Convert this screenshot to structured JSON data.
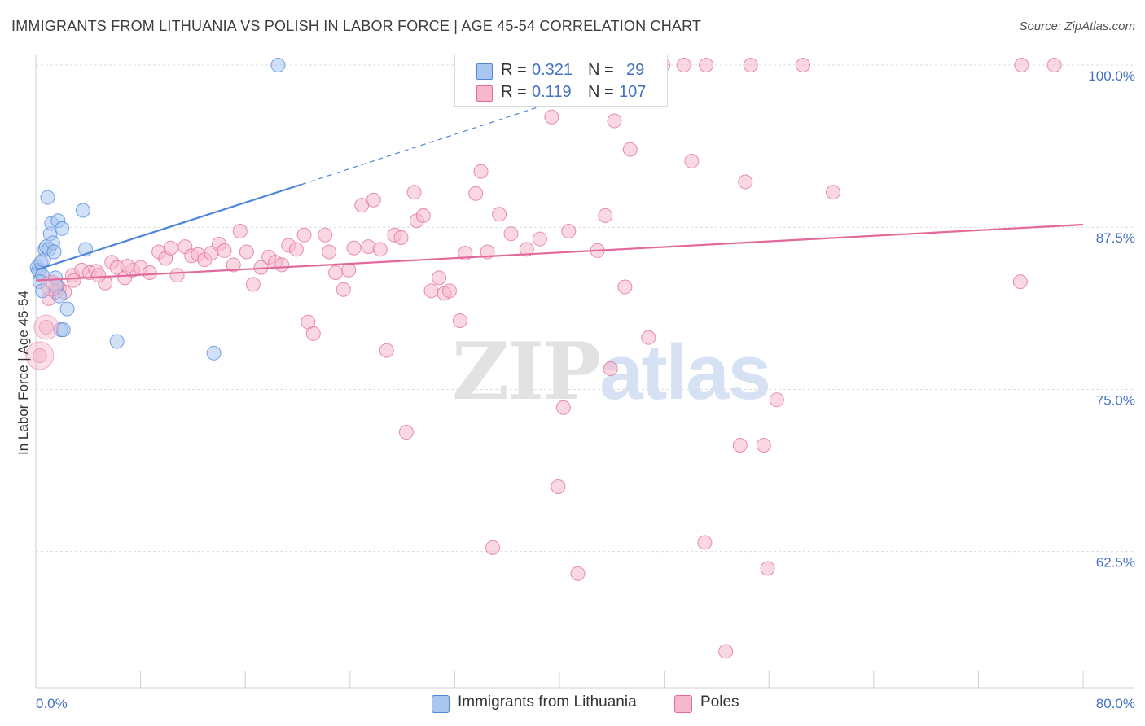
{
  "header": {
    "title": "IMMIGRANTS FROM LITHUANIA VS POLISH IN LABOR FORCE | AGE 45-54 CORRELATION CHART",
    "source": "Source: ZipAtlas.com"
  },
  "watermark": {
    "zip": "ZIP",
    "atlas": "atlas"
  },
  "legend": {
    "rows": [
      {
        "r_label": "R = ",
        "r_value": "0.321",
        "n_label": "N = ",
        "n_value": "29",
        "color": "#a9c6ef"
      },
      {
        "r_label": "R = ",
        "r_value": "0.119",
        "n_label": "N = ",
        "n_value": "107",
        "color": "#f5b8cb"
      }
    ]
  },
  "bottom_legend": {
    "items": [
      {
        "label": "Immigrants from Lithuania",
        "color": "#a9c6ef"
      },
      {
        "label": "Poles",
        "color": "#f5b8cb"
      }
    ]
  },
  "chart_data": {
    "type": "scatter",
    "title": "IMMIGRANTS FROM LITHUANIA VS POLISH IN LABOR FORCE | AGE 45-54 CORRELATION CHART",
    "ylabel": "In Labor Force | Age 45-54",
    "xlabel": "",
    "xlim": [
      0,
      80
    ],
    "ylim": [
      52,
      100
    ],
    "x_tick_labels": [
      "0.0%",
      "80.0%"
    ],
    "y_ticks": [
      100.0,
      87.5,
      75.0,
      62.5
    ],
    "y_tick_labels": [
      "100.0%",
      "87.5%",
      "75.0%",
      "62.5%"
    ],
    "grid": true,
    "legend_position": "top-center",
    "series": [
      {
        "name": "Immigrants from Lithuania",
        "color": "#4f86d9",
        "fill": "#a9c6ef",
        "r": 0.321,
        "n": 29,
        "trend": {
          "x0": 0,
          "y0": 84.2,
          "x1": 20.3,
          "y1": 90.8,
          "dashed_to_x": 40,
          "dashed_to_y": 97.3
        },
        "points": [
          [
            0.1,
            84.4
          ],
          [
            0.2,
            84.2
          ],
          [
            0.3,
            84.0
          ],
          [
            0.4,
            84.8
          ],
          [
            0.5,
            83.8
          ],
          [
            0.6,
            85.0
          ],
          [
            0.7,
            85.8
          ],
          [
            0.8,
            86.0
          ],
          [
            0.9,
            89.8
          ],
          [
            1.0,
            85.8
          ],
          [
            1.1,
            87.0
          ],
          [
            1.2,
            87.8
          ],
          [
            1.3,
            86.3
          ],
          [
            1.4,
            85.6
          ],
          [
            1.5,
            83.6
          ],
          [
            1.6,
            83.0
          ],
          [
            1.7,
            88.0
          ],
          [
            1.8,
            82.2
          ],
          [
            1.9,
            79.6
          ],
          [
            2.0,
            87.4
          ],
          [
            2.1,
            79.6
          ],
          [
            2.4,
            81.2
          ],
          [
            3.6,
            88.8
          ],
          [
            3.8,
            85.8
          ],
          [
            6.2,
            78.7
          ],
          [
            13.6,
            77.8
          ],
          [
            18.5,
            100.0
          ],
          [
            0.3,
            83.3
          ],
          [
            0.5,
            82.6
          ]
        ]
      },
      {
        "name": "Poles",
        "color": "#e2699a",
        "fill": "#f5b8cb",
        "r": 0.119,
        "n": 107,
        "trend": {
          "x0": 0,
          "y0": 83.4,
          "x1": 80,
          "y1": 87.7
        },
        "points": [
          [
            0.3,
            77.6
          ],
          [
            0.8,
            79.8
          ],
          [
            1.2,
            83.2
          ],
          [
            1.5,
            82.5
          ],
          [
            1.8,
            82.8
          ],
          [
            2.2,
            82.5
          ],
          [
            2.8,
            83.8
          ],
          [
            3.5,
            84.2
          ],
          [
            4.1,
            84.0
          ],
          [
            4.6,
            84.1
          ],
          [
            5.3,
            83.2
          ],
          [
            5.8,
            84.8
          ],
          [
            6.2,
            84.4
          ],
          [
            6.8,
            83.6
          ],
          [
            7.4,
            84.2
          ],
          [
            8.0,
            84.4
          ],
          [
            8.7,
            84.0
          ],
          [
            9.4,
            85.6
          ],
          [
            9.9,
            85.1
          ],
          [
            10.3,
            85.9
          ],
          [
            10.8,
            83.8
          ],
          [
            11.4,
            86.0
          ],
          [
            11.9,
            85.3
          ],
          [
            12.4,
            85.4
          ],
          [
            12.9,
            85.0
          ],
          [
            13.4,
            85.5
          ],
          [
            14.0,
            86.2
          ],
          [
            14.4,
            85.7
          ],
          [
            15.1,
            84.6
          ],
          [
            15.6,
            87.2
          ],
          [
            16.1,
            85.6
          ],
          [
            16.6,
            83.1
          ],
          [
            17.2,
            84.4
          ],
          [
            17.8,
            85.2
          ],
          [
            18.3,
            84.8
          ],
          [
            18.8,
            84.6
          ],
          [
            19.3,
            86.1
          ],
          [
            19.9,
            85.8
          ],
          [
            20.5,
            86.9
          ],
          [
            20.8,
            80.2
          ],
          [
            21.2,
            79.3
          ],
          [
            22.1,
            86.9
          ],
          [
            22.4,
            85.6
          ],
          [
            22.9,
            84.0
          ],
          [
            23.5,
            82.7
          ],
          [
            23.9,
            84.2
          ],
          [
            24.3,
            85.9
          ],
          [
            24.9,
            89.2
          ],
          [
            25.4,
            86.0
          ],
          [
            25.8,
            89.6
          ],
          [
            26.3,
            85.8
          ],
          [
            26.8,
            78.0
          ],
          [
            27.4,
            86.9
          ],
          [
            27.9,
            86.7
          ],
          [
            28.3,
            71.7
          ],
          [
            28.9,
            90.2
          ],
          [
            29.1,
            88.0
          ],
          [
            29.6,
            88.4
          ],
          [
            30.2,
            82.6
          ],
          [
            30.8,
            83.6
          ],
          [
            31.2,
            82.4
          ],
          [
            31.6,
            82.6
          ],
          [
            32.4,
            80.3
          ],
          [
            32.8,
            85.5
          ],
          [
            33.6,
            90.1
          ],
          [
            34.0,
            91.8
          ],
          [
            34.5,
            85.6
          ],
          [
            34.9,
            62.8
          ],
          [
            35.4,
            88.5
          ],
          [
            36.3,
            87.0
          ],
          [
            36.8,
            99.2
          ],
          [
            37.5,
            85.8
          ],
          [
            38.5,
            86.6
          ],
          [
            39.4,
            96.0
          ],
          [
            39.9,
            67.5
          ],
          [
            40.3,
            73.6
          ],
          [
            40.7,
            87.2
          ],
          [
            41.4,
            60.8
          ],
          [
            42.2,
            99.0
          ],
          [
            42.9,
            85.7
          ],
          [
            43.5,
            88.4
          ],
          [
            43.9,
            76.6
          ],
          [
            44.2,
            95.7
          ],
          [
            45.0,
            82.9
          ],
          [
            45.4,
            93.5
          ],
          [
            46.8,
            79.0
          ],
          [
            47.9,
            100.0
          ],
          [
            49.5,
            100.0
          ],
          [
            50.1,
            92.6
          ],
          [
            51.1,
            63.2
          ],
          [
            51.2,
            100.0
          ],
          [
            52.7,
            54.8
          ],
          [
            53.8,
            70.7
          ],
          [
            54.2,
            91.0
          ],
          [
            54.6,
            100.0
          ],
          [
            55.6,
            70.7
          ],
          [
            55.9,
            61.2
          ],
          [
            56.6,
            74.2
          ],
          [
            58.6,
            100.0
          ],
          [
            60.9,
            90.2
          ],
          [
            75.2,
            83.3
          ],
          [
            75.3,
            100.0
          ],
          [
            77.8,
            100.0
          ],
          [
            1.0,
            82.0
          ],
          [
            2.9,
            83.4
          ],
          [
            4.8,
            83.8
          ],
          [
            7.0,
            84.5
          ]
        ]
      }
    ]
  }
}
